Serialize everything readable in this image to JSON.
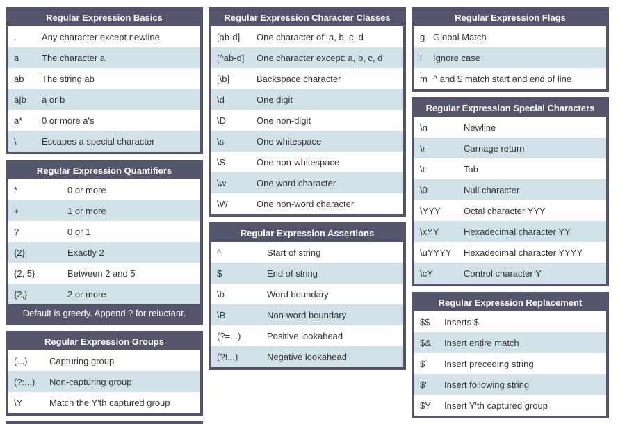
{
  "colors": {
    "header_bg": "#54556A",
    "row_alt_bg": "#D0E1E8",
    "row_bg": "#FFFFFF",
    "header_text": "#FFFFFF",
    "row_text": "#333333"
  },
  "columns": [
    {
      "tables": [
        {
          "id": "regex-basics-table",
          "title": "Regular Expression Basics",
          "rows": [
            [
              ".",
              "Any character except newline"
            ],
            [
              "a",
              "The character a"
            ],
            [
              "ab",
              "The string ab"
            ],
            [
              "a|b",
              "a or b"
            ],
            [
              "a*",
              "0 or more a's"
            ],
            [
              "\\",
              "Escapes a special character"
            ]
          ],
          "footer": null
        },
        {
          "id": "regex-quantifiers-table",
          "title": "Regular Expression Quantifiers",
          "rows": [
            [
              "*",
              "0 or more"
            ],
            [
              "+",
              "1 or more"
            ],
            [
              "?",
              "0 or 1"
            ],
            [
              "{2}",
              "Exactly 2"
            ],
            [
              "{2, 5}",
              "Between 2 and 5"
            ],
            [
              "{2,}",
              "2 or more"
            ]
          ],
          "footer": "Default is greedy. Append ? for reluctant."
        },
        {
          "id": "regex-groups-table",
          "title": "Regular Expression Groups",
          "rows": [
            [
              "(...)",
              "Capturing group"
            ],
            [
              "(?:...)",
              "Non-capturing group"
            ],
            [
              "\\Y",
              "Match the Y'th captured group"
            ]
          ],
          "footer": null
        }
      ],
      "cutoff_bar": true
    },
    {
      "tables": [
        {
          "id": "regex-character-classes-table",
          "title": "Regular Expression Character Classes",
          "rows": [
            [
              "[ab-d]",
              "One character of: a, b, c, d"
            ],
            [
              "[^ab-d]",
              "One character except: a, b, c, d"
            ],
            [
              "[\\b]",
              "Backspace character"
            ],
            [
              "\\d",
              "One digit"
            ],
            [
              "\\D",
              "One non-digit"
            ],
            [
              "\\s",
              "One whitespace"
            ],
            [
              "\\S",
              "One non-whitespace"
            ],
            [
              "\\w",
              "One word character"
            ],
            [
              "\\W",
              "One non-word character"
            ]
          ],
          "footer": null
        },
        {
          "id": "regex-assertions-table",
          "title": "Regular Expression Assertions",
          "rows": [
            [
              "^",
              "Start of string"
            ],
            [
              "$",
              "End of string"
            ],
            [
              "\\b",
              "Word boundary"
            ],
            [
              "\\B",
              "Non-word boundary"
            ],
            [
              "(?=...)",
              "Positive lookahead"
            ],
            [
              "(?!...)",
              "Negative lookahead"
            ]
          ],
          "footer": null
        }
      ],
      "cutoff_bar": false
    },
    {
      "tables": [
        {
          "id": "regex-flags-table",
          "title": "Regular Expression Flags",
          "rows": [
            [
              "g",
              "Global Match"
            ],
            [
              "i",
              "Ignore case"
            ],
            [
              "m",
              "^ and $ match start and end of line"
            ]
          ],
          "footer": null
        },
        {
          "id": "regex-special-characters-table",
          "title": "Regular Expression Special Characters",
          "rows": [
            [
              "\\n",
              "Newline"
            ],
            [
              "\\r",
              "Carriage return"
            ],
            [
              "\\t",
              "Tab"
            ],
            [
              "\\0",
              "Null character"
            ],
            [
              "\\YYY",
              "Octal character YYY"
            ],
            [
              "\\xYY",
              "Hexadecimal character YY"
            ],
            [
              "\\uYYYY",
              "Hexadecimal character YYYY"
            ],
            [
              "\\cY",
              "Control character Y"
            ]
          ],
          "footer": null
        },
        {
          "id": "regex-replacement-table",
          "title": "Regular Expression Replacement",
          "rows": [
            [
              "$$",
              "Inserts $"
            ],
            [
              "$&",
              "Insert entire match"
            ],
            [
              "$`",
              "Insert preceding string"
            ],
            [
              "$'",
              "Insert following string"
            ],
            [
              "$Y",
              "Insert Y'th captured group"
            ]
          ],
          "footer": null
        }
      ],
      "cutoff_bar": false
    }
  ]
}
